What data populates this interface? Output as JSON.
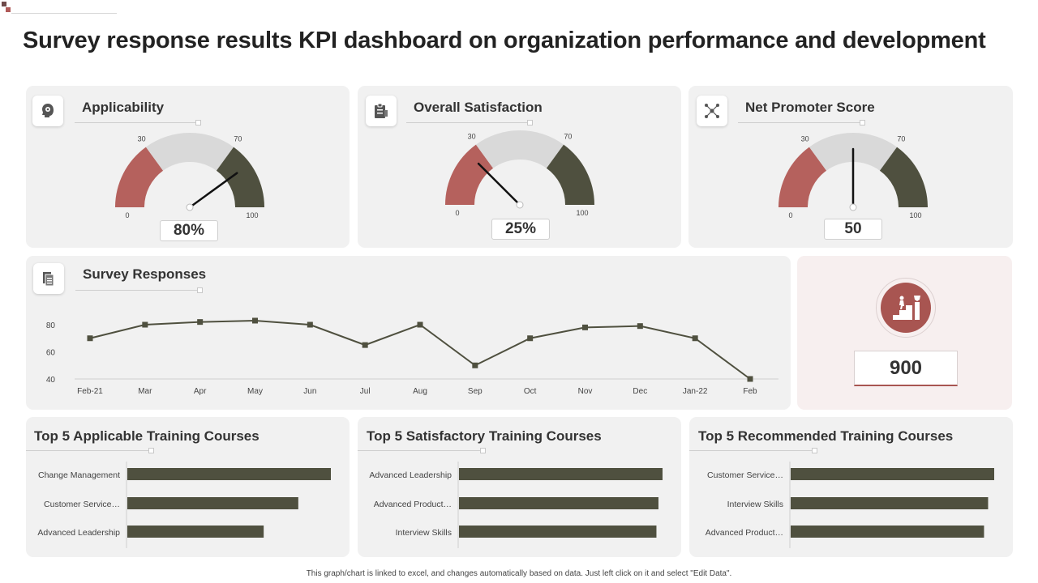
{
  "page": {
    "title": "Survey response results KPI dashboard on organization performance and development",
    "footnote": "This graph/chart is linked to excel, and changes automatically based on data. Just left click on it and select \"Edit Data\"."
  },
  "colors": {
    "red": "#b5615d",
    "grey": "#d9d9d9",
    "dark": "#4f503f",
    "panel_bg": "#f1f1f1",
    "accent": "#a85551"
  },
  "gauges": [
    {
      "title": "Applicability",
      "icon": "head-gear-icon",
      "value": 80,
      "display": "80%",
      "ticks": [
        "0",
        "30",
        "70",
        "100"
      ]
    },
    {
      "title": "Overall  Satisfaction",
      "icon": "clipboard-icon",
      "value": 25,
      "display": "25%",
      "ticks": [
        "0",
        "30",
        "70",
        "100"
      ]
    },
    {
      "title": "Net Promoter Score",
      "icon": "network-icon",
      "value": 50,
      "display": "50",
      "ticks": [
        "0",
        "30",
        "70",
        "100"
      ]
    }
  ],
  "survey": {
    "title": "Survey Responses",
    "icon": "document-stack-icon"
  },
  "kpi": {
    "value": "900",
    "icon": "stairs-trophy-icon"
  },
  "courses": [
    {
      "title": "Top 5 Applicable  Training Courses"
    },
    {
      "title": "Top 5 Satisfactory  Training Courses"
    },
    {
      "title": "Top 5 Recommended Training Courses"
    }
  ],
  "chart_data": [
    {
      "type": "line",
      "title": "Survey Responses",
      "categories": [
        "Feb-21",
        "Mar",
        "Apr",
        "May",
        "Jun",
        "Jul",
        "Aug",
        "Sep",
        "Oct",
        "Nov",
        "Dec",
        "Jan-22",
        "Feb"
      ],
      "values": [
        70,
        80,
        82,
        83,
        80,
        65,
        80,
        50,
        70,
        78,
        79,
        70,
        40
      ],
      "ylim": [
        40,
        85
      ],
      "yticks": [
        40,
        60,
        80
      ],
      "xlabel": "",
      "ylabel": ""
    },
    {
      "type": "bar",
      "orientation": "horizontal",
      "title": "Top 5 Applicable  Training Courses",
      "categories": [
        "Change Management",
        "Customer Service…",
        "Advanced Leadership"
      ],
      "values": [
        100,
        84,
        67
      ],
      "xlim": [
        0,
        100
      ]
    },
    {
      "type": "bar",
      "orientation": "horizontal",
      "title": "Top 5 Satisfactory  Training Courses",
      "categories": [
        "Advanced Leadership",
        "Advanced Product…",
        "Interview Skills"
      ],
      "values": [
        100,
        98,
        97
      ],
      "xlim": [
        0,
        100
      ]
    },
    {
      "type": "bar",
      "orientation": "horizontal",
      "title": "Top 5 Recommended Training Courses",
      "categories": [
        "Customer Service…",
        "Interview Skills",
        "Advanced Product…"
      ],
      "values": [
        100,
        97,
        95
      ],
      "xlim": [
        0,
        100
      ]
    }
  ]
}
